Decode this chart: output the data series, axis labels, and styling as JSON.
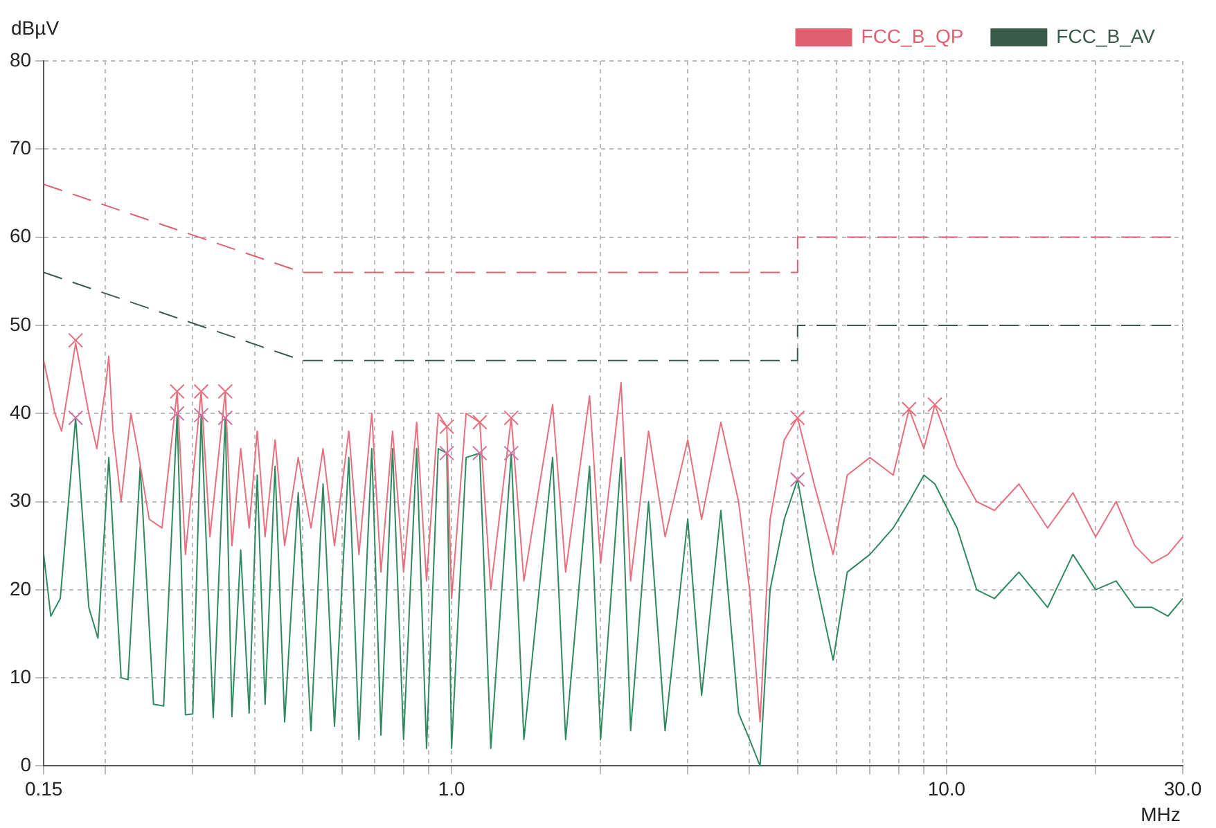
{
  "chart_data": {
    "type": "line",
    "xlabel": "MHz",
    "ylabel": "dBµV",
    "log": "x",
    "grid": true,
    "legend": "top",
    "marker": "none",
    "xlim": [
      0.15,
      30
    ],
    "ylim": [
      0,
      80
    ],
    "xticks": [
      {
        "value": 0.15,
        "label": "0.15"
      },
      {
        "value": 0.2,
        "label": null
      },
      {
        "value": 0.3,
        "label": null
      },
      {
        "value": 0.4,
        "label": null
      },
      {
        "value": 0.5,
        "label": null
      },
      {
        "value": 0.6,
        "label": null
      },
      {
        "value": 0.7,
        "label": null
      },
      {
        "value": 0.8,
        "label": null
      },
      {
        "value": 0.9,
        "label": null
      },
      {
        "value": 1,
        "label": "1.0"
      },
      {
        "value": 2,
        "label": null
      },
      {
        "value": 3,
        "label": null
      },
      {
        "value": 4,
        "label": null
      },
      {
        "value": 5,
        "label": null
      },
      {
        "value": 6,
        "label": null
      },
      {
        "value": 7,
        "label": null
      },
      {
        "value": 8,
        "label": null
      },
      {
        "value": 9,
        "label": null
      },
      {
        "value": 10,
        "label": "10.0"
      },
      {
        "value": 20,
        "label": null
      },
      {
        "value": 30,
        "label": "30.0"
      }
    ],
    "yticks": [
      0,
      10,
      20,
      30,
      40,
      50,
      60,
      70,
      80
    ],
    "series": [
      {
        "name": "FCC_B_QP",
        "color": "#e06070",
        "line_style": "dashed",
        "x": [
          0.15,
          0.5,
          5,
          5,
          30
        ],
        "values": [
          66,
          56,
          56,
          60,
          60
        ]
      },
      {
        "name": "FCC_B_AV",
        "color": "#3a5a4a",
        "line_style": "dashed",
        "x": [
          0.15,
          0.5,
          5,
          5,
          30
        ],
        "values": [
          56,
          46,
          46,
          50,
          50
        ]
      },
      {
        "color": "#e8707e",
        "x": [
          0.15,
          0.158,
          0.163,
          0.174,
          0.185,
          0.192,
          0.2,
          0.203,
          0.207,
          0.215,
          0.225,
          0.232,
          0.245,
          0.26,
          0.279,
          0.29,
          0.312,
          0.325,
          0.349,
          0.36,
          0.375,
          0.39,
          0.405,
          0.42,
          0.44,
          0.46,
          0.49,
          0.52,
          0.55,
          0.58,
          0.62,
          0.65,
          0.69,
          0.72,
          0.76,
          0.8,
          0.85,
          0.89,
          0.94,
          0.978,
          1.0,
          1.07,
          1.14,
          1.2,
          1.32,
          1.4,
          1.6,
          1.7,
          1.9,
          2.0,
          2.2,
          2.3,
          2.5,
          2.7,
          3.0,
          3.2,
          3.5,
          3.8,
          4.0,
          4.2,
          4.4,
          4.7,
          5.0,
          5.4,
          5.9,
          6.3,
          7.0,
          7.8,
          8.4,
          9.0,
          9.47,
          10.5,
          11.5,
          12.5,
          14,
          16,
          18,
          20,
          22,
          24,
          26,
          28,
          30
        ],
        "values": [
          46,
          40,
          38,
          48,
          40,
          36,
          43,
          46.5,
          38,
          30,
          40,
          36,
          28,
          27,
          42.5,
          24,
          42.5,
          26,
          42.5,
          25,
          36,
          27,
          38,
          26,
          37,
          25,
          35,
          27,
          36,
          25,
          38,
          24,
          40,
          22,
          38,
          22,
          39,
          21,
          40,
          38.5,
          19,
          40,
          39,
          20,
          39.5,
          21,
          41,
          22,
          42,
          23,
          43.5,
          21,
          38,
          26,
          37,
          28,
          39,
          30,
          20,
          5,
          28,
          37,
          39.5,
          32,
          24,
          33,
          35,
          33,
          40.5,
          36,
          41,
          34,
          30,
          29,
          32,
          27,
          31,
          26,
          30,
          25,
          23,
          24,
          26
        ]
      },
      {
        "color": "#2e8a5e",
        "x": [
          0.15,
          0.155,
          0.162,
          0.174,
          0.185,
          0.193,
          0.203,
          0.215,
          0.222,
          0.235,
          0.25,
          0.262,
          0.279,
          0.29,
          0.3,
          0.312,
          0.33,
          0.349,
          0.36,
          0.375,
          0.39,
          0.405,
          0.42,
          0.44,
          0.46,
          0.49,
          0.52,
          0.55,
          0.58,
          0.62,
          0.65,
          0.69,
          0.72,
          0.76,
          0.8,
          0.85,
          0.89,
          0.94,
          0.978,
          1.0,
          1.07,
          1.14,
          1.2,
          1.32,
          1.4,
          1.6,
          1.7,
          1.9,
          2.0,
          2.2,
          2.3,
          2.5,
          2.7,
          3.0,
          3.2,
          3.5,
          3.8,
          4.0,
          4.2,
          4.4,
          4.7,
          5.0,
          5.4,
          5.9,
          6.3,
          7.0,
          7.8,
          8.4,
          9.0,
          9.47,
          10.5,
          11.5,
          12.5,
          14,
          16,
          18,
          20,
          22,
          24,
          26,
          28,
          30
        ],
        "values": [
          24,
          17,
          19,
          39.5,
          18,
          14.5,
          35,
          10,
          9.8,
          34,
          7,
          6.8,
          40,
          5.8,
          5.9,
          39.8,
          5.5,
          39.5,
          5.6,
          24.5,
          6,
          33,
          7,
          34,
          5,
          31,
          4,
          32,
          4.5,
          35,
          3,
          36,
          3.5,
          36,
          3,
          36,
          2,
          36,
          35.5,
          2,
          35,
          35.5,
          2,
          35.5,
          3,
          35,
          3,
          34,
          3,
          35,
          4,
          30,
          4,
          28,
          8,
          29,
          6,
          3,
          0,
          20,
          28,
          32.5,
          22,
          12,
          22,
          24,
          27,
          30,
          33,
          32,
          27,
          20,
          19,
          22,
          18,
          24,
          20,
          21,
          18,
          18,
          17,
          19
        ]
      },
      {
        "type": "scatter",
        "marker": "cross",
        "color": "#e8707e",
        "x": [
          0.174,
          0.279,
          0.312,
          0.349,
          0.978,
          1.14,
          1.32,
          5.0,
          8.4,
          9.47
        ],
        "values": [
          48.3,
          42.5,
          42.5,
          42.5,
          38.5,
          39,
          39.5,
          39.5,
          40.5,
          41
        ]
      },
      {
        "type": "scatter",
        "marker": "cross",
        "color": "#d070a0",
        "x": [
          0.174,
          0.279,
          0.312,
          0.349,
          0.978,
          1.14,
          1.32,
          5.0
        ],
        "values": [
          39.5,
          40,
          39.8,
          39.5,
          35.5,
          35.5,
          35.5,
          32.5
        ]
      }
    ]
  }
}
